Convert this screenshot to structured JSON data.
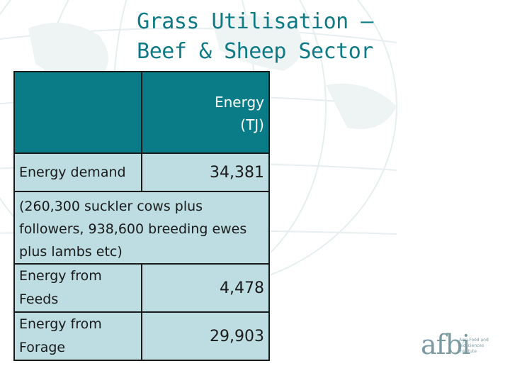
{
  "title": {
    "line1": "Grass Utilisation –",
    "line2": "Beef & Sheep Sector"
  },
  "table": {
    "header": {
      "col1": "",
      "col2_line1": "Energy",
      "col2_line2": "(TJ)"
    },
    "energy_demand": {
      "label": "Energy demand",
      "value": "34,381"
    },
    "note": "(260,300 suckler cows plus followers, 938,600 breeding ewes plus lambs etc)",
    "from_feeds": {
      "label_line1": "Energy from",
      "label_line2": "Feeds",
      "value": "4,478"
    },
    "from_forage": {
      "label_line1": "Energy from",
      "label_line2": "Forage",
      "value": "29,903"
    }
  },
  "logo": {
    "name": "afbi",
    "subtitle": "Agri-Food and Biosciences Institute"
  },
  "colors": {
    "title": "#0d7a86",
    "header_fill": "#0a7c88",
    "body_fill": "#bddde3"
  }
}
